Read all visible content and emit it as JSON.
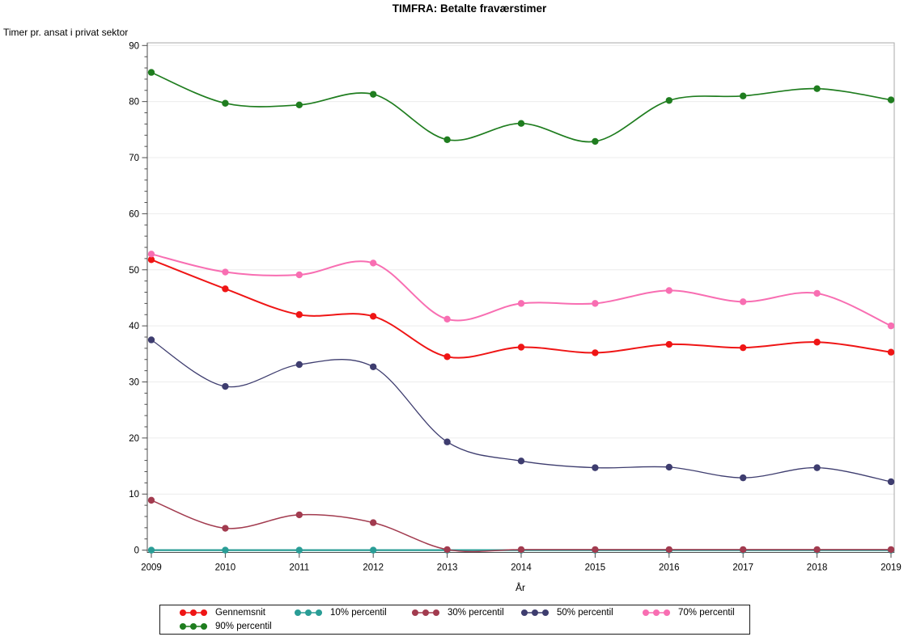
{
  "chart_data": {
    "type": "line",
    "title": "TIMFRA: Betalte fraværstimer",
    "ylabel": "Timer pr. ansat i privat sektor",
    "xlabel": "År",
    "x": [
      "2009",
      "2010",
      "2011",
      "2012",
      "2013",
      "2014",
      "2015",
      "2016",
      "2017",
      "2018",
      "2019"
    ],
    "ylim": [
      0,
      90
    ],
    "ytick_interval": 10,
    "yminor_interval": 2,
    "grid": true,
    "legend_position": "bottom",
    "curve": "smooth",
    "marker": "filled-circle",
    "series": [
      {
        "name": "Gennemsnit",
        "color": "#ef1515",
        "values": [
          51.8,
          46.6,
          42.0,
          41.7,
          34.5,
          36.2,
          35.2,
          36.7,
          36.1,
          37.1,
          35.3
        ]
      },
      {
        "name": "10% percentil",
        "color": "#2a9d96",
        "values": [
          0,
          0,
          0,
          0,
          0,
          0,
          0,
          0,
          0,
          0,
          0
        ]
      },
      {
        "name": "30% percentil",
        "color": "#a23b4f",
        "values": [
          8.9,
          3.9,
          6.3,
          4.9,
          0.1,
          0.1,
          0.1,
          0.1,
          0.1,
          0.1,
          0.1
        ]
      },
      {
        "name": "50% percentil",
        "color": "#3e3d6f",
        "values": [
          37.5,
          29.2,
          33.1,
          32.7,
          19.3,
          15.9,
          14.7,
          14.8,
          12.9,
          14.7,
          12.2
        ]
      },
      {
        "name": "70% percentil",
        "color": "#f86eb2",
        "values": [
          52.8,
          49.6,
          49.1,
          51.2,
          41.2,
          44.0,
          44.0,
          46.3,
          44.3,
          45.8,
          40.0
        ]
      },
      {
        "name": "90% percentil",
        "color": "#1f7d1f",
        "values": [
          85.2,
          79.7,
          79.4,
          81.3,
          73.2,
          76.1,
          72.9,
          80.2,
          81.0,
          82.3,
          80.3
        ]
      }
    ],
    "colors": {
      "grid": "#ececec",
      "frame": "#a9a9a9",
      "axis": "#4d4d4d",
      "text": "#000000",
      "background": "#ffffff"
    }
  }
}
